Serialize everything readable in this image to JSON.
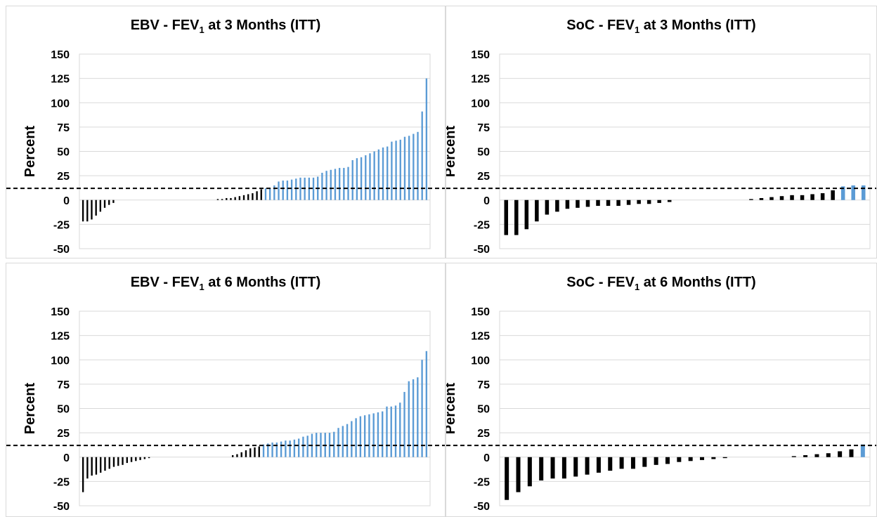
{
  "colors": {
    "improvement_bar": "#5b9bd5",
    "other_bar": "#000000",
    "gridline": "#d9d9d9",
    "threshold_line": "#000000"
  },
  "chart_data": [
    {
      "type": "bar",
      "title": "EBV - FEV",
      "title_subscript": "1",
      "title_suffix": " at 3 Months (ITT)",
      "ylabel": "Percent",
      "xlabel": "",
      "ylim": [
        -50,
        150
      ],
      "yticks": [
        150,
        125,
        100,
        75,
        50,
        25,
        0,
        -25,
        -50
      ],
      "grid": true,
      "threshold": 12,
      "values": [
        -22,
        -22,
        -20,
        -16,
        -12,
        -8,
        -5,
        -3,
        0,
        0,
        0,
        0,
        0,
        0,
        0,
        0,
        0,
        0,
        0,
        0,
        0,
        0,
        0,
        0,
        0,
        0,
        0,
        0,
        0,
        0,
        0,
        1,
        1,
        2,
        2,
        3,
        4,
        5,
        6,
        7,
        9,
        11,
        12,
        12,
        15,
        19,
        20,
        20,
        21,
        22,
        23,
        23,
        23,
        23,
        24,
        28,
        30,
        31,
        32,
        33,
        33,
        34,
        41,
        43,
        44,
        46,
        48,
        50,
        52,
        54,
        55,
        60,
        61,
        62,
        65,
        66,
        68,
        70,
        91,
        125
      ]
    },
    {
      "type": "bar",
      "title": "SoC - FEV",
      "title_subscript": "1",
      "title_suffix": " at 3 Months (ITT)",
      "ylabel": "Percent",
      "xlabel": "",
      "ylim": [
        -50,
        150
      ],
      "yticks": [
        150,
        125,
        100,
        75,
        50,
        25,
        0,
        -25,
        -50
      ],
      "grid": true,
      "threshold": 12,
      "values": [
        -36,
        -36,
        -30,
        -22,
        -15,
        -12,
        -9,
        -8,
        -7,
        -6,
        -6,
        -6,
        -5,
        -4,
        -4,
        -3,
        -2,
        0,
        0,
        0,
        0,
        0,
        0,
        0,
        1,
        2,
        3,
        4,
        5,
        5,
        6,
        7,
        10,
        14,
        15,
        15
      ]
    },
    {
      "type": "bar",
      "title": "EBV - FEV",
      "title_subscript": "1",
      "title_suffix": " at 6 Months (ITT)",
      "ylabel": "Percent",
      "xlabel": "",
      "ylim": [
        -50,
        150
      ],
      "yticks": [
        150,
        125,
        100,
        75,
        50,
        25,
        0,
        -25,
        -50
      ],
      "grid": true,
      "threshold": 12,
      "values": [
        -36,
        -22,
        -19,
        -18,
        -16,
        -14,
        -12,
        -10,
        -9,
        -8,
        -6,
        -5,
        -4,
        -3,
        -2,
        -1,
        0,
        0,
        0,
        0,
        0,
        0,
        0,
        0,
        0,
        0,
        0,
        0,
        0,
        0,
        0,
        0,
        0,
        0,
        2,
        3,
        5,
        7,
        9,
        10,
        11,
        13,
        14,
        15,
        15,
        16,
        17,
        17,
        18,
        19,
        21,
        22,
        24,
        25,
        25,
        25,
        25,
        26,
        30,
        32,
        34,
        37,
        40,
        42,
        43,
        44,
        45,
        46,
        47,
        52,
        52,
        53,
        56,
        67,
        78,
        80,
        82,
        100,
        109
      ]
    },
    {
      "type": "bar",
      "title": "SoC - FEV",
      "title_subscript": "1",
      "title_suffix": " at 6 Months (ITT)",
      "ylabel": "Percent",
      "xlabel": "",
      "ylim": [
        -50,
        150
      ],
      "yticks": [
        150,
        125,
        100,
        75,
        50,
        25,
        0,
        -25,
        -50
      ],
      "grid": true,
      "threshold": 12,
      "values": [
        -44,
        -36,
        -30,
        -24,
        -22,
        -22,
        -20,
        -18,
        -16,
        -14,
        -12,
        -12,
        -10,
        -8,
        -7,
        -5,
        -4,
        -3,
        -2,
        -1,
        0,
        0,
        0,
        0,
        0,
        1,
        2,
        3,
        4,
        6,
        8,
        13
      ]
    }
  ]
}
